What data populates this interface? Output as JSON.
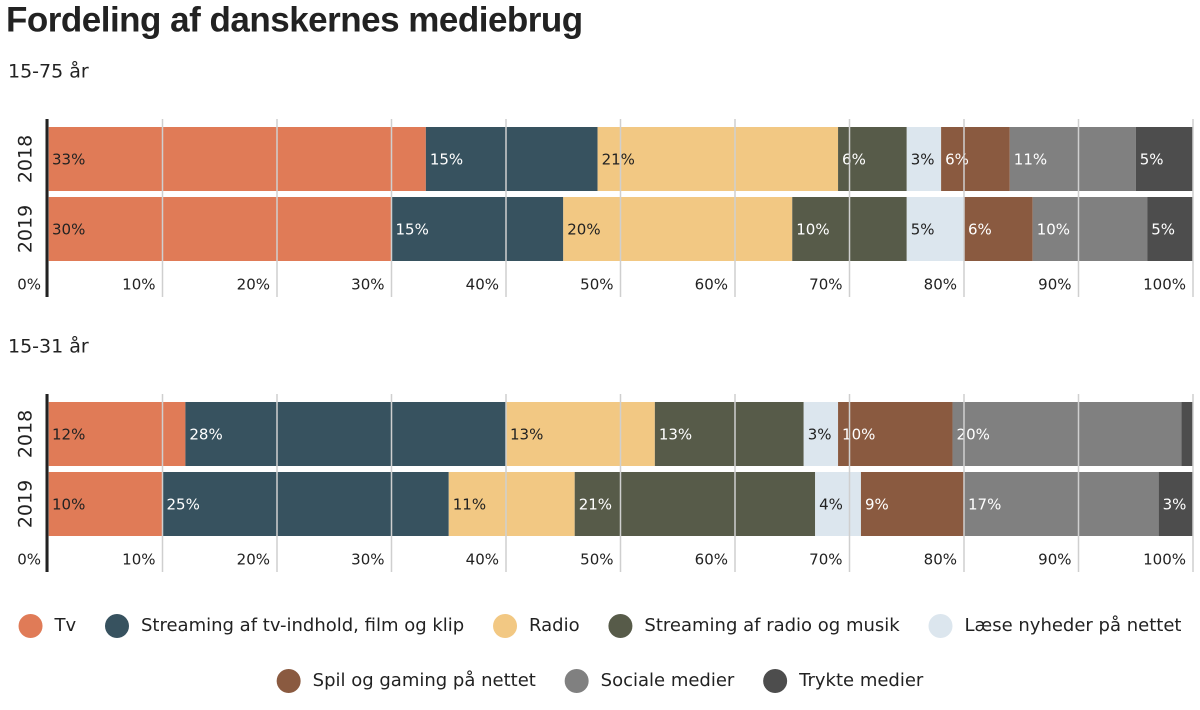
{
  "title": "Fordeling af danskernes mediebrug",
  "legend": {
    "items": [
      {
        "name": "Tv",
        "color": "#e07b57"
      },
      {
        "name": "Streaming af tv-indhold, film og klip",
        "color": "#37525f"
      },
      {
        "name": "Radio",
        "color": "#f2c883"
      },
      {
        "name": "Streaming af radio og musik",
        "color": "#575b49"
      },
      {
        "name": "Læse nyheder på nettet",
        "color": "#dce6ee"
      },
      {
        "name": "Spil og gaming på nettet",
        "color": "#8a5a40"
      },
      {
        "name": "Sociale medier",
        "color": "#808080"
      },
      {
        "name": "Trykte medier",
        "color": "#4d4d4d"
      }
    ]
  },
  "chart_data": [
    {
      "type": "bar",
      "orientation": "horizontal",
      "stacked": true,
      "subtitle": "15-75 år",
      "categories": [
        "2018",
        "2019"
      ],
      "series": [
        {
          "values": [
            33,
            30
          ],
          "value_labels": [
            "33%",
            "30%"
          ]
        },
        {
          "values": [
            15,
            15
          ],
          "value_labels": [
            "15%",
            "15%"
          ]
        },
        {
          "values": [
            21,
            20
          ],
          "value_labels": [
            "21%",
            "20%"
          ]
        },
        {
          "values": [
            6,
            10
          ],
          "value_labels": [
            "6%",
            "10%"
          ]
        },
        {
          "values": [
            3,
            5
          ],
          "value_labels": [
            "3%",
            "5%"
          ]
        },
        {
          "values": [
            6,
            6
          ],
          "value_labels": [
            "6%",
            "6%"
          ]
        },
        {
          "values": [
            11,
            10
          ],
          "value_labels": [
            "11%",
            "10%"
          ]
        },
        {
          "values": [
            5,
            5
          ],
          "value_labels": [
            "5%",
            "5%"
          ]
        }
      ],
      "xlim": [
        0,
        100
      ],
      "xticks": [
        {
          "value": 0,
          "label": "0%"
        },
        {
          "value": 10,
          "label": "10%"
        },
        {
          "value": 20,
          "label": "20%"
        },
        {
          "value": 30,
          "label": "30%"
        },
        {
          "value": 40,
          "label": "40%"
        },
        {
          "value": 50,
          "label": "50%"
        },
        {
          "value": 60,
          "label": "60%"
        },
        {
          "value": 70,
          "label": "70%"
        },
        {
          "value": 80,
          "label": "80%"
        },
        {
          "value": 90,
          "label": "90%"
        },
        {
          "value": 100,
          "label": "100%"
        }
      ],
      "grid": true
    },
    {
      "type": "bar",
      "orientation": "horizontal",
      "stacked": true,
      "subtitle": "15-31 år",
      "categories": [
        "2018",
        "2019"
      ],
      "series": [
        {
          "values": [
            12,
            10
          ],
          "value_labels": [
            "12%",
            "10%"
          ]
        },
        {
          "values": [
            28,
            25
          ],
          "value_labels": [
            "28%",
            "25%"
          ]
        },
        {
          "values": [
            13,
            11
          ],
          "value_labels": [
            "13%",
            "11%"
          ]
        },
        {
          "values": [
            13,
            21
          ],
          "value_labels": [
            "13%",
            "21%"
          ]
        },
        {
          "values": [
            3,
            4
          ],
          "value_labels": [
            "3%",
            "4%"
          ]
        },
        {
          "values": [
            10,
            9
          ],
          "value_labels": [
            "10%",
            "9%"
          ]
        },
        {
          "values": [
            20,
            17
          ],
          "value_labels": [
            "20%",
            "17%"
          ]
        },
        {
          "values": [
            2,
            3
          ],
          "value_labels": [
            null,
            "3%"
          ]
        }
      ],
      "xlim": [
        0,
        100
      ],
      "xticks": [
        {
          "value": 0,
          "label": "0%"
        },
        {
          "value": 10,
          "label": "10%"
        },
        {
          "value": 20,
          "label": "20%"
        },
        {
          "value": 30,
          "label": "30%"
        },
        {
          "value": 40,
          "label": "40%"
        },
        {
          "value": 50,
          "label": "50%"
        },
        {
          "value": 60,
          "label": "60%"
        },
        {
          "value": 70,
          "label": "70%"
        },
        {
          "value": 80,
          "label": "80%"
        },
        {
          "value": 90,
          "label": "90%"
        },
        {
          "value": 100,
          "label": "100%"
        }
      ],
      "grid": true
    }
  ]
}
